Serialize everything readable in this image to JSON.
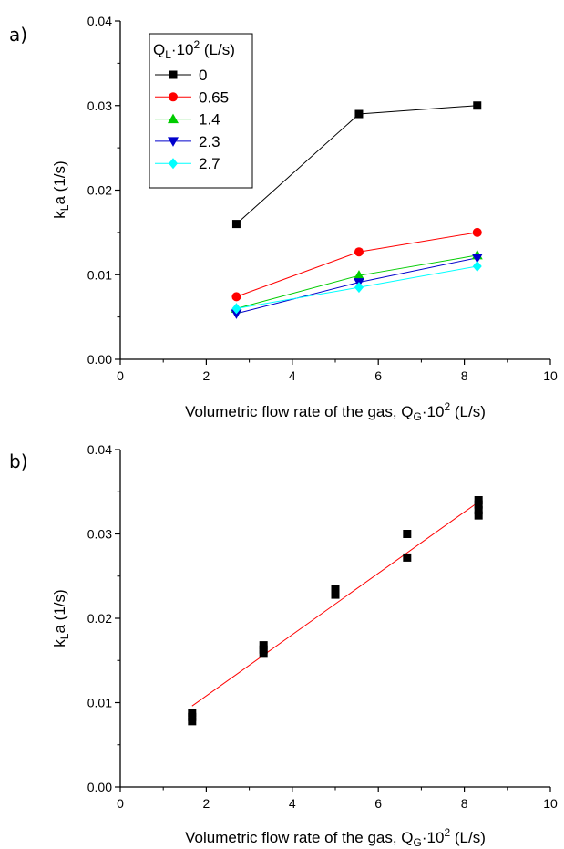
{
  "figure": {
    "panel_a_label": "a)",
    "panel_b_label": "b)",
    "xlabel_main": "Volumetric flow rate of the gas, Q",
    "xlabel_sub": "G",
    "xlabel_dot": "·10",
    "xlabel_sup": "2",
    "xlabel_unit": " (L/s)",
    "ylabel_main": "k",
    "ylabel_sub": "L",
    "ylabel_rest": "a (1/s)",
    "legend_title_main": "Q",
    "legend_title_sub": "L",
    "legend_title_dot": "·10",
    "legend_title_sup": "2",
    "legend_title_unit": " (L/s)"
  },
  "chart_data": [
    {
      "type": "line",
      "panel": "a)",
      "xlim": [
        0,
        10
      ],
      "ylim": [
        0,
        0.04
      ],
      "xticks": [
        "0",
        "2",
        "4",
        "6",
        "8",
        "10"
      ],
      "yticks": [
        "0.00",
        "0.01",
        "0.02",
        "0.03",
        "0.04"
      ],
      "legend": "top-left",
      "grid": false,
      "series": [
        {
          "name": "0",
          "color": "#000000",
          "marker": "square",
          "x": [
            2.7,
            5.55,
            8.3
          ],
          "y": [
            0.016,
            0.029,
            0.03
          ]
        },
        {
          "name": "0.65",
          "color": "#ff0000",
          "marker": "circle",
          "x": [
            2.7,
            5.55,
            8.3
          ],
          "y": [
            0.0074,
            0.0127,
            0.015
          ]
        },
        {
          "name": "1.4",
          "color": "#00cc00",
          "marker": "triangle-up",
          "x": [
            2.7,
            5.55,
            8.3
          ],
          "y": [
            0.006,
            0.0099,
            0.0123
          ]
        },
        {
          "name": "2.3",
          "color": "#0000cc",
          "marker": "triangle-down",
          "x": [
            2.7,
            5.55,
            8.3
          ],
          "y": [
            0.0054,
            0.0091,
            0.012
          ]
        },
        {
          "name": "2.7",
          "color": "#00ffff",
          "marker": "diamond",
          "x": [
            2.7,
            5.55,
            8.3
          ],
          "y": [
            0.006,
            0.0085,
            0.011
          ]
        }
      ]
    },
    {
      "type": "scatter",
      "panel": "b)",
      "xlim": [
        0,
        10
      ],
      "ylim": [
        0,
        0.04
      ],
      "xticks": [
        "0",
        "2",
        "4",
        "6",
        "8",
        "10"
      ],
      "yticks": [
        "0.00",
        "0.01",
        "0.02",
        "0.03",
        "0.04"
      ],
      "grid": false,
      "points": {
        "color": "#000000",
        "marker": "square",
        "x": [
          1.67,
          1.67,
          1.67,
          3.33,
          3.33,
          3.33,
          5.0,
          5.0,
          5.0,
          6.67,
          6.67,
          8.33,
          8.33,
          8.33,
          8.33
        ],
        "y": [
          0.0088,
          0.0083,
          0.0078,
          0.0168,
          0.0163,
          0.0158,
          0.0235,
          0.0232,
          0.0228,
          0.03,
          0.0272,
          0.034,
          0.0335,
          0.0328,
          0.0322
        ]
      },
      "fit_line": {
        "color": "#ff0000",
        "x": [
          1.67,
          8.33
        ],
        "y": [
          0.0096,
          0.0338
        ]
      }
    }
  ]
}
